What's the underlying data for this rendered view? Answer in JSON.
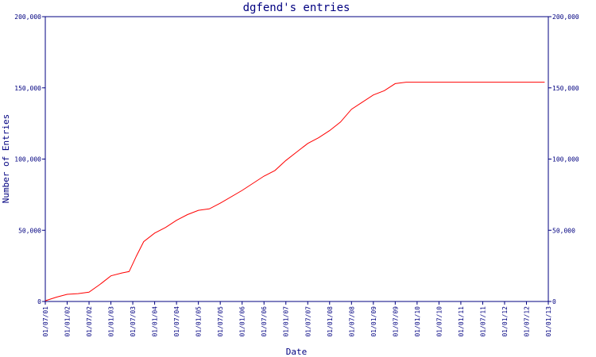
{
  "chart_data": {
    "type": "line",
    "title": "dgfend's entries",
    "xlabel": "Date",
    "ylabel": "Number of Entries",
    "ylim": [
      0,
      200000
    ],
    "yticks": [
      0,
      50000,
      100000,
      150000,
      200000
    ],
    "ytick_labels": [
      "0",
      "50,000",
      "100,000",
      "150,000",
      "200,000"
    ],
    "yaxis_right": true,
    "grid": false,
    "line_color": "#ff0000",
    "axis_color": "#000080",
    "x_ticks": [
      "01/07/01",
      "01/01/02",
      "01/07/02",
      "01/01/03",
      "01/07/03",
      "01/01/04",
      "01/07/04",
      "01/01/05",
      "01/07/05",
      "01/01/06",
      "01/07/06",
      "01/01/07",
      "01/07/07",
      "01/01/08",
      "01/07/08",
      "01/01/09",
      "01/07/09",
      "01/01/10",
      "01/07/10",
      "01/01/11",
      "01/07/11",
      "01/01/12",
      "01/07/12",
      "01/01/13"
    ],
    "series": [
      {
        "points": [
          [
            "01/07/01",
            500
          ],
          [
            "01/10/01",
            3000
          ],
          [
            "01/01/02",
            5000
          ],
          [
            "01/04/02",
            5500
          ],
          [
            "01/07/02",
            6500
          ],
          [
            "01/10/02",
            12000
          ],
          [
            "01/01/03",
            18000
          ],
          [
            "01/04/03",
            20000
          ],
          [
            "01/06/03",
            21000
          ],
          [
            "01/08/03",
            32000
          ],
          [
            "01/10/03",
            42000
          ],
          [
            "01/01/04",
            48000
          ],
          [
            "01/04/04",
            52000
          ],
          [
            "01/07/04",
            57000
          ],
          [
            "01/10/04",
            61000
          ],
          [
            "01/01/05",
            64000
          ],
          [
            "01/04/05",
            65000
          ],
          [
            "01/07/05",
            69000
          ],
          [
            "01/01/06",
            78000
          ],
          [
            "01/07/06",
            88000
          ],
          [
            "01/10/06",
            92000
          ],
          [
            "01/01/07",
            99000
          ],
          [
            "01/04/07",
            105000
          ],
          [
            "01/07/07",
            111000
          ],
          [
            "01/10/07",
            115000
          ],
          [
            "01/01/08",
            120000
          ],
          [
            "01/04/08",
            126000
          ],
          [
            "01/07/08",
            135000
          ],
          [
            "01/10/08",
            140000
          ],
          [
            "01/01/09",
            145000
          ],
          [
            "01/04/09",
            148000
          ],
          [
            "01/07/09",
            153000
          ],
          [
            "01/10/09",
            154000
          ],
          [
            "01/01/10",
            154000
          ],
          [
            "01/07/10",
            154000
          ],
          [
            "01/01/11",
            154000
          ],
          [
            "01/07/11",
            154000
          ],
          [
            "01/01/12",
            154000
          ],
          [
            "01/07/12",
            154000
          ],
          [
            "01/12/12",
            154000
          ]
        ]
      }
    ]
  }
}
